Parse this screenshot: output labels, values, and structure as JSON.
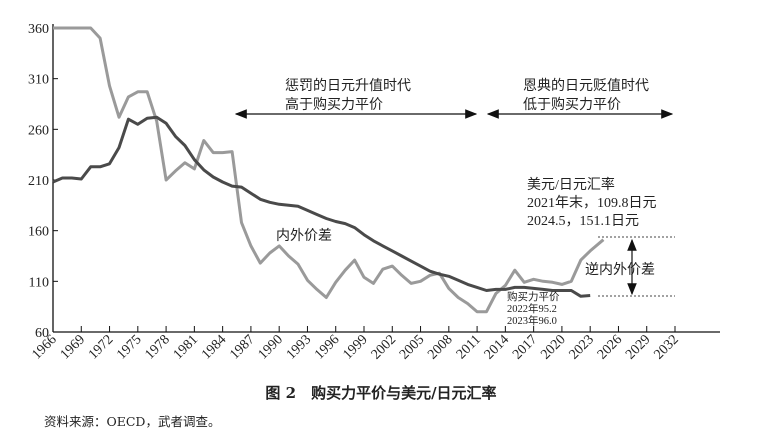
{
  "chart_data": {
    "type": "line",
    "title": "图 2　购买力平价与美元/日元汇率",
    "source": "资料来源：OECD，武者调查。",
    "xlabel": "",
    "ylabel": "",
    "xlim": [
      1966,
      2033
    ],
    "ylim": [
      60,
      360
    ],
    "yticks": [
      "60",
      "110",
      "160",
      "210",
      "260",
      "310",
      "360"
    ],
    "xticks": [
      "1966",
      "1969",
      "1972",
      "1975",
      "1978",
      "1981",
      "1984",
      "1987",
      "1990",
      "1993",
      "1996",
      "1999",
      "2002",
      "2005",
      "2008",
      "2011",
      "2014",
      "2017",
      "2020",
      "2023",
      "2026",
      "2029",
      "2032"
    ],
    "grid": false,
    "series": [
      {
        "name": "美元/日元汇率",
        "color": "#9a9a9a",
        "x": [
          1966,
          1967,
          1968,
          1969,
          1970,
          1971,
          1972,
          1973,
          1974,
          1975,
          1976,
          1977,
          1978,
          1979,
          1980,
          1981,
          1982,
          1983,
          1984,
          1985,
          1986,
          1987,
          1988,
          1989,
          1990,
          1991,
          1992,
          1993,
          1994,
          1995,
          1996,
          1997,
          1998,
          1999,
          2000,
          2001,
          2002,
          2003,
          2004,
          2005,
          2006,
          2007,
          2008,
          2009,
          2010,
          2011,
          2012,
          2013,
          2014,
          2015,
          2016,
          2017,
          2018,
          2019,
          2020,
          2021,
          2022,
          2023,
          2024.4
        ],
        "values": [
          360,
          360,
          360,
          360,
          360,
          350,
          303,
          272,
          292,
          297,
          297,
          268,
          210,
          219,
          227,
          221,
          249,
          237,
          237,
          238,
          168,
          145,
          128,
          138,
          145,
          135,
          127,
          111,
          102,
          94,
          109,
          121,
          131,
          114,
          108,
          122,
          125,
          116,
          108,
          110,
          116,
          118,
          103,
          94,
          88,
          80,
          80,
          98,
          106,
          121,
          109,
          112,
          110,
          109,
          107,
          110,
          131,
          140,
          151.1
        ]
      },
      {
        "name": "购买力平价",
        "color": "#4a4a4a",
        "x": [
          1966,
          1967,
          1968,
          1969,
          1970,
          1971,
          1972,
          1973,
          1974,
          1975,
          1976,
          1977,
          1978,
          1979,
          1980,
          1981,
          1982,
          1983,
          1984,
          1985,
          1986,
          1987,
          1988,
          1989,
          1990,
          1991,
          1992,
          1993,
          1994,
          1995,
          1996,
          1997,
          1998,
          1999,
          2000,
          2001,
          2002,
          2003,
          2004,
          2005,
          2006,
          2007,
          2008,
          2009,
          2010,
          2011,
          2012,
          2013,
          2014,
          2015,
          2016,
          2017,
          2018,
          2019,
          2020,
          2021,
          2022,
          2023
        ],
        "values": [
          208,
          212,
          212,
          211,
          223,
          223,
          226,
          242,
          270,
          265,
          271,
          272,
          266,
          253,
          244,
          230,
          220,
          213,
          208,
          204,
          203,
          197,
          191,
          188,
          186,
          185,
          184,
          180,
          176,
          172,
          169,
          167,
          163,
          156,
          150,
          145,
          140,
          135,
          130,
          125,
          120,
          117,
          115,
          111,
          107,
          104,
          101,
          102,
          102,
          104,
          104,
          103,
          102,
          101,
          101,
          101,
          95.2,
          96.0
        ]
      }
    ],
    "annotations": {
      "era1_line1": "惩罚的日元升值时代",
      "era1_line2": "高于购买力平价",
      "era2_line1": "恩典的日元贬值时代",
      "era2_line2": "低于购买力平价",
      "gap_label": "内外价差",
      "reverse_gap_label": "逆内外价差",
      "fx_title": "美元/日元汇率",
      "fx_2021": "2021年末，109.8日元",
      "fx_2024": "2024.5，151.1日元",
      "ppp_title": "购买力平价",
      "ppp_2022": "2022年95.2",
      "ppp_2023": "2023年96.0"
    }
  }
}
